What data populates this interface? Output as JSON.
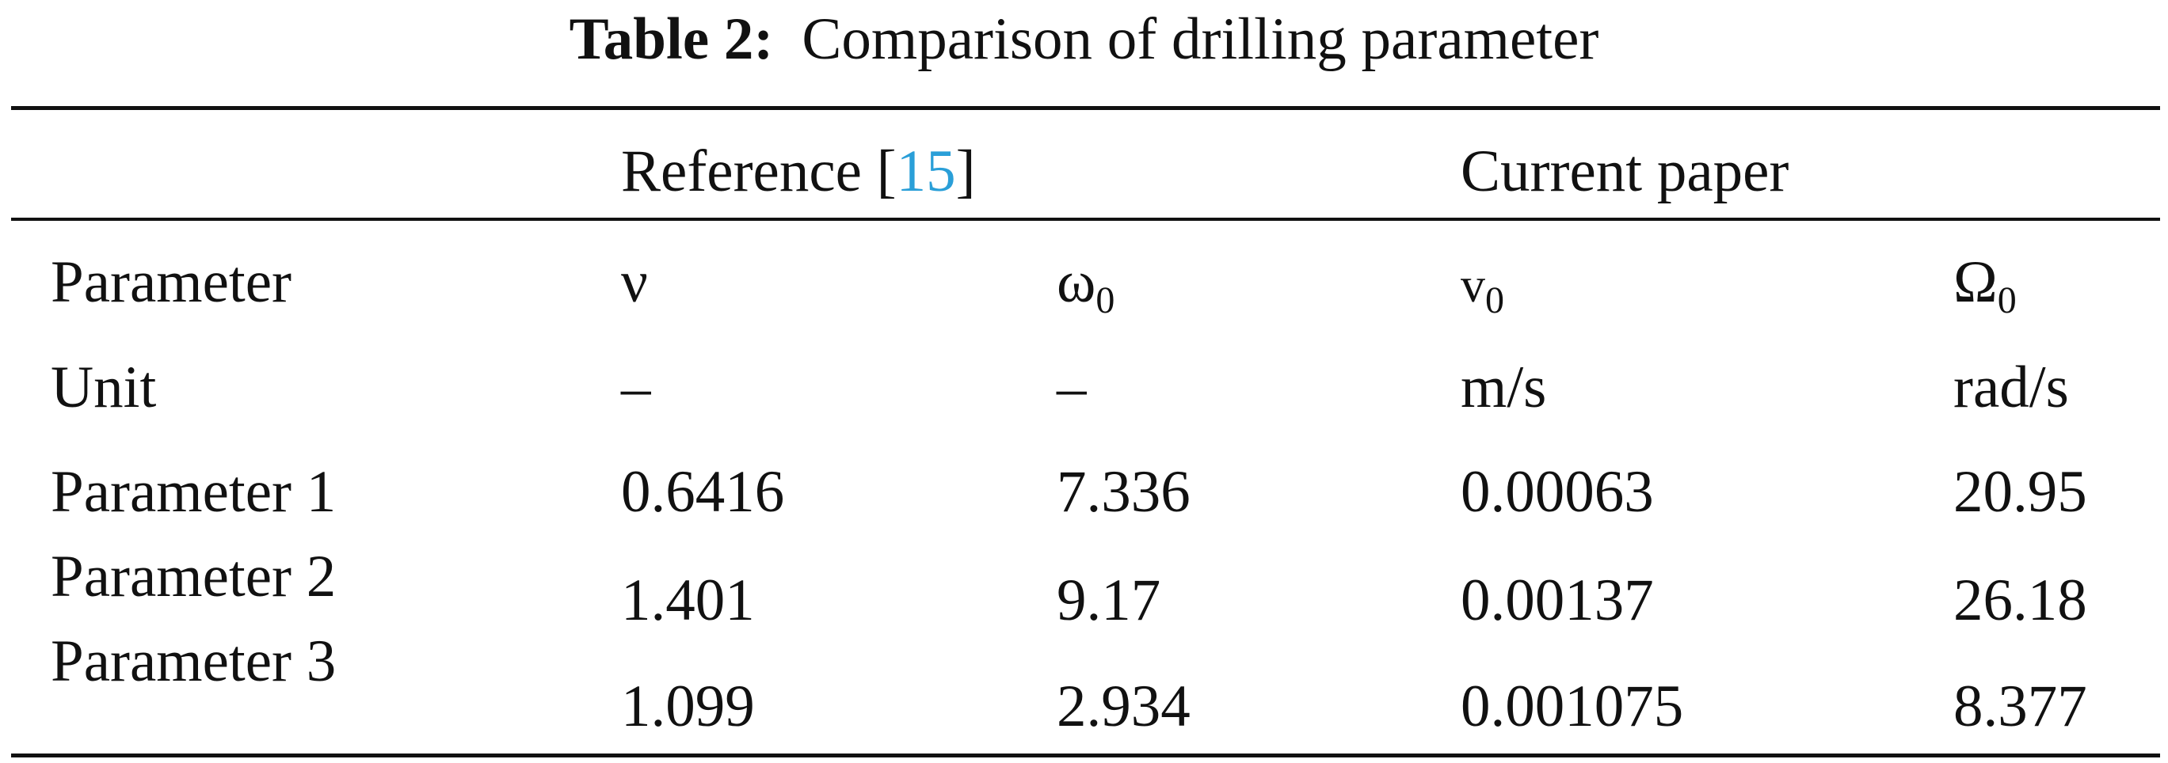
{
  "caption": {
    "label": "Table 2:",
    "text": "Comparison of drilling parameter"
  },
  "group_headers": {
    "reference_label": "Reference [",
    "reference_cite": "15",
    "reference_close": "]",
    "current": "Current paper"
  },
  "columns": {
    "parameter": "Parameter",
    "ref_nu": "ν",
    "ref_omega_base": "ω",
    "ref_omega_sub": "0",
    "cur_v_base": "v",
    "cur_v_sub": "0",
    "cur_Omega_base": "Ω",
    "cur_Omega_sub": "0"
  },
  "units": {
    "label": "Unit",
    "ref_nu": "–",
    "ref_omega": "–",
    "cur_v": "m/s",
    "cur_Omega": "rad/s"
  },
  "rows": [
    {
      "name": "Parameter 1",
      "ref_nu": "0.6416",
      "ref_omega": "7.336",
      "cur_v": "0.00063",
      "cur_Omega": "20.95"
    },
    {
      "name": "Parameter 2",
      "ref_nu": "1.401",
      "ref_omega": "9.17",
      "cur_v": "0.00137",
      "cur_Omega": "26.18"
    },
    {
      "name": "Parameter 3",
      "ref_nu": "1.099",
      "ref_omega": "2.934",
      "cur_v": "0.001075",
      "cur_Omega": "8.377"
    }
  ]
}
